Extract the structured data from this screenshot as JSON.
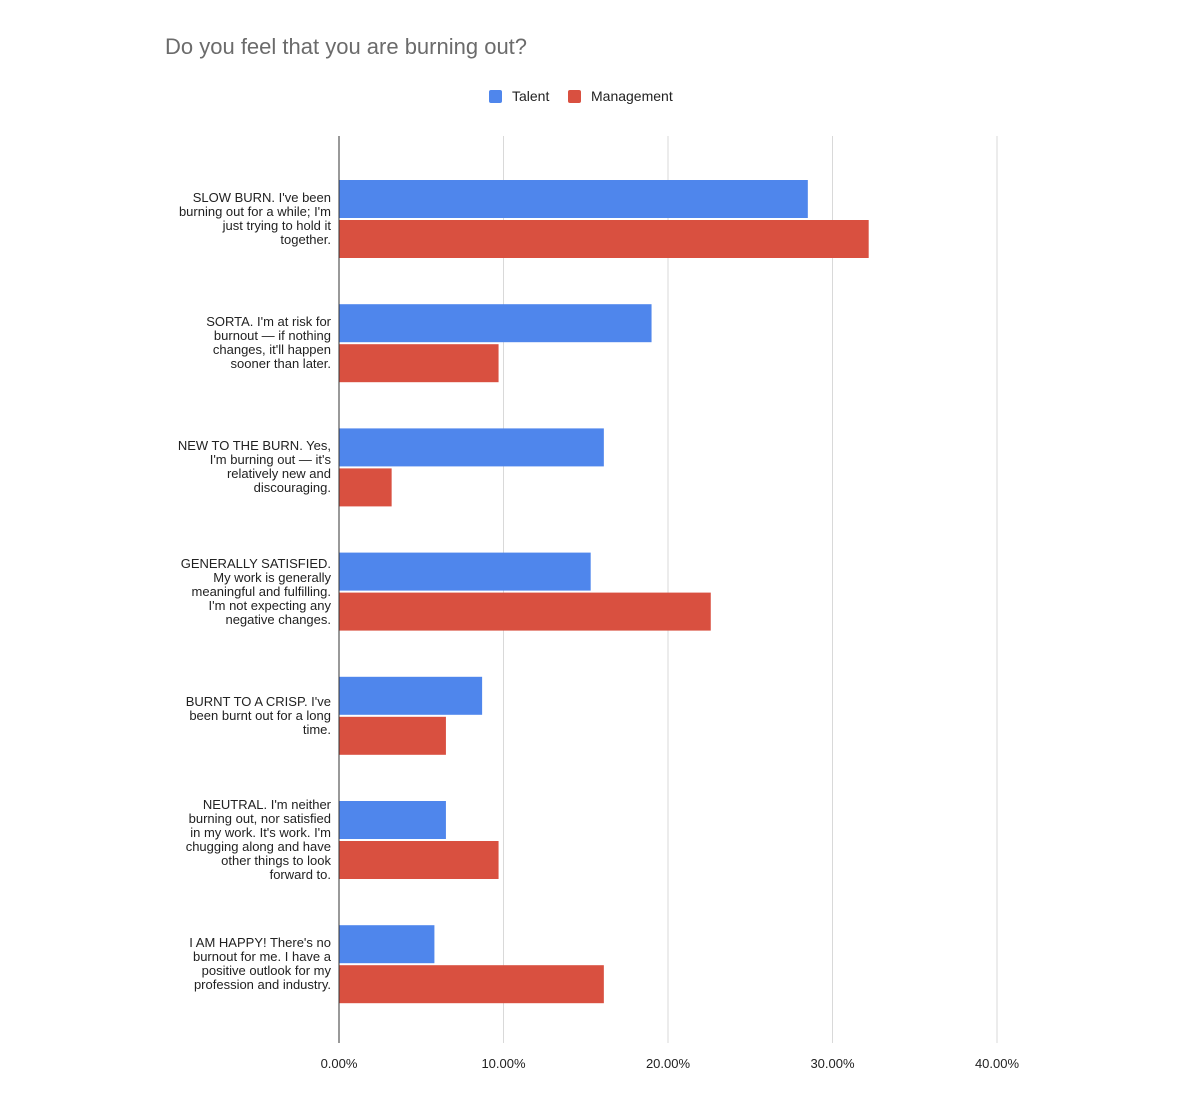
{
  "chart_data": {
    "type": "bar",
    "orientation": "horizontal",
    "title": "Do you feel that you are burning out?",
    "xlabel": "",
    "ylabel": "",
    "xlim": [
      0,
      0.4
    ],
    "x_ticks": [
      "0.00%",
      "10.00%",
      "20.00%",
      "30.00%",
      "40.00%"
    ],
    "grid": true,
    "legend_position": "top",
    "categories": [
      "SLOW BURN. I've been burning out for a while; I'm just trying to hold it together.",
      "SORTA. I'm at risk for burnout — if nothing changes, it'll happen sooner than later.",
      "NEW TO THE BURN. Yes, I'm burning out — it's relatively new and discouraging.",
      "GENERALLY SATISFIED. My work is generally meaningful and fulfilling. I'm not expecting any negative changes.",
      "BURNT TO A CRISP. I've been burnt out for a long time.",
      "NEUTRAL. I'm neither burning out, nor satisfied in my work. It's work. I'm chugging along and have other things to look forward to.",
      "I AM HAPPY! There's no burnout for me. I have a positive outlook for my profession and industry."
    ],
    "category_lines": [
      [
        "SLOW BURN. I've been",
        "burning out for a while; I'm",
        "just trying to hold it",
        "together."
      ],
      [
        "SORTA. I'm at risk for",
        "burnout — if nothing",
        "changes, it'll happen",
        "sooner than later."
      ],
      [
        "NEW TO THE BURN. Yes,",
        "I'm burning out — it's",
        "relatively new and",
        "discouraging."
      ],
      [
        "GENERALLY SATISFIED.",
        "My work is generally",
        "meaningful and fulfilling.",
        "I'm not expecting any",
        "negative changes."
      ],
      [
        "BURNT TO A CRISP. I've",
        "been burnt out for a long",
        "time."
      ],
      [
        "NEUTRAL. I'm neither",
        "burning out, nor satisfied",
        "in my work. It's work. I'm",
        "chugging along and have",
        "other things to look",
        "forward to."
      ],
      [
        "I AM HAPPY! There's no",
        "burnout for me. I have a",
        "positive outlook for my",
        "profession and industry."
      ]
    ],
    "series": [
      {
        "name": "Talent",
        "color": "#4f86ec",
        "values": [
          0.285,
          0.19,
          0.161,
          0.153,
          0.087,
          0.065,
          0.058
        ]
      },
      {
        "name": "Management",
        "color": "#d95040",
        "values": [
          0.322,
          0.097,
          0.032,
          0.226,
          0.065,
          0.097,
          0.161
        ]
      }
    ]
  }
}
